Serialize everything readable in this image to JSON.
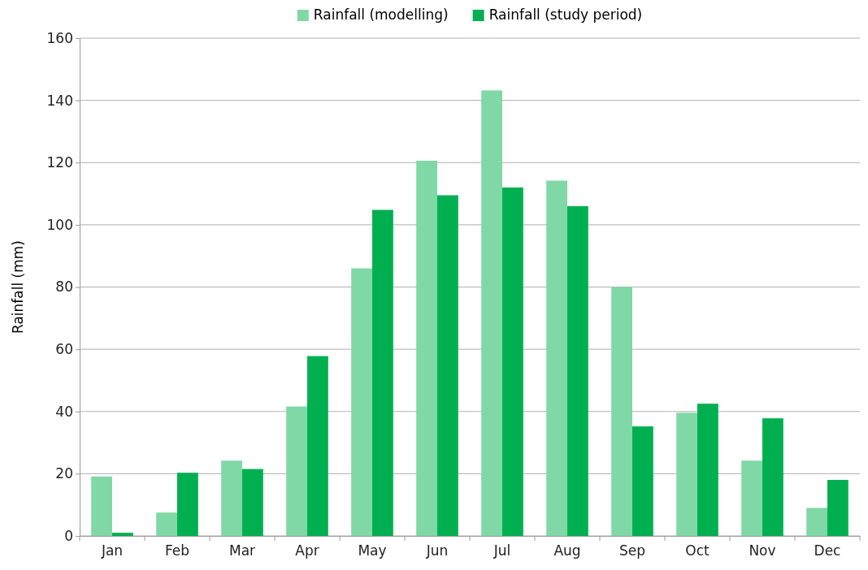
{
  "chart_data": {
    "type": "bar",
    "ylabel": "Rainfall (mm)",
    "categories": [
      "Jan",
      "Feb",
      "Mar",
      "Apr",
      "May",
      "Jun",
      "Jul",
      "Aug",
      "Sep",
      "Oct",
      "Nov",
      "Dec"
    ],
    "series": [
      {
        "name": "Rainfall (modelling)",
        "color": "#80d8a6",
        "values": [
          19.1,
          7.5,
          24.2,
          41.6,
          86,
          120.6,
          143.2,
          114.2,
          80,
          39.6,
          24.2,
          9
        ]
      },
      {
        "name": "Rainfall (study period)",
        "color": "#00b050",
        "values": [
          1,
          20.3,
          21.5,
          57.8,
          104.8,
          109.5,
          112,
          106,
          35.2,
          42.5,
          37.8,
          18
        ]
      }
    ],
    "ylim": [
      0,
      160
    ],
    "yticks": [
      0,
      20,
      40,
      60,
      80,
      100,
      120,
      140,
      160
    ],
    "grid": "y",
    "legend": "top"
  }
}
